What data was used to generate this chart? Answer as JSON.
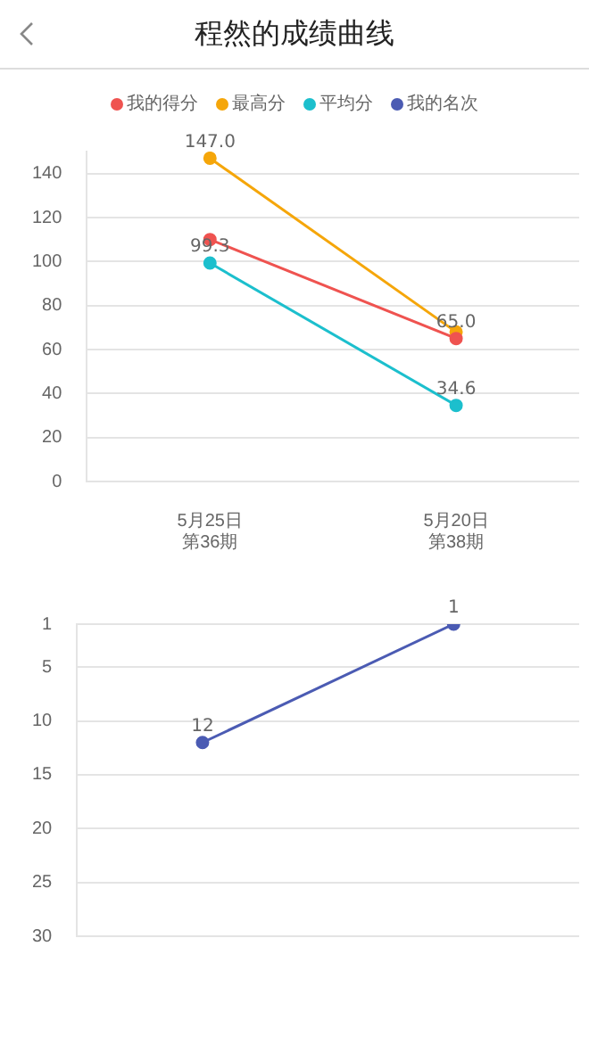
{
  "chart_data": [
    {
      "type": "line",
      "title": "程然的成绩曲线",
      "categories": [
        "5月25日第36期",
        "5月20日第38期"
      ],
      "series": [
        {
          "name": "我的得分",
          "color": "#ef5350",
          "values": [
            110,
            65.0
          ],
          "value_labels": [
            null,
            "65.0"
          ]
        },
        {
          "name": "最高分",
          "color": "#f5a60a",
          "values": [
            147.0,
            68
          ],
          "value_labels": [
            "147.0",
            null
          ]
        },
        {
          "name": "平均分",
          "color": "#1cbfcd",
          "values": [
            99.3,
            34.6
          ],
          "value_labels": [
            "99.3",
            "34.6"
          ]
        }
      ],
      "ylim": [
        0,
        150
      ],
      "yticks": [
        0,
        20,
        40,
        60,
        80,
        100,
        120,
        140
      ],
      "grid": "y",
      "legend": "top",
      "marker": "circle",
      "line_style": "solid"
    },
    {
      "type": "line",
      "categories": [
        null,
        null
      ],
      "series": [
        {
          "name": "我的名次",
          "color": "#4b5bb3",
          "values": [
            12,
            1
          ]
        }
      ],
      "ylim": [
        30,
        1
      ],
      "yticks": [
        1,
        5,
        10,
        15,
        20,
        25,
        30
      ],
      "grid": "y",
      "legend": "top",
      "marker": "circle",
      "line_style": "solid",
      "data_labels": true,
      "tick_labels": "y"
    }
  ]
}
